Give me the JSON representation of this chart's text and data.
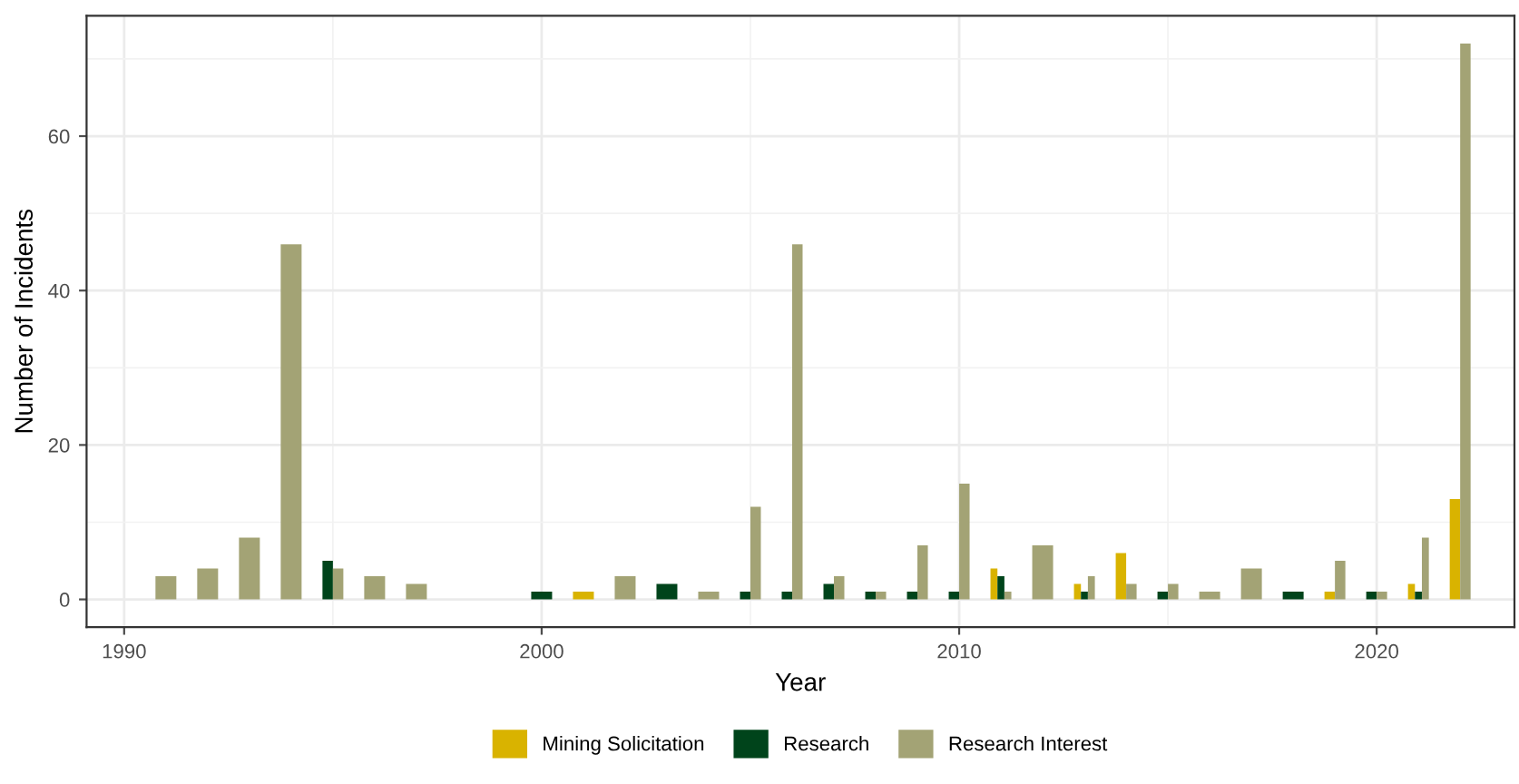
{
  "chart_data": {
    "type": "bar",
    "xlabel": "Year",
    "ylabel": "Number of Incidents",
    "x": [
      1991,
      1992,
      1993,
      1994,
      1995,
      1996,
      1997,
      2000,
      2001,
      2002,
      2003,
      2004,
      2005,
      2006,
      2007,
      2008,
      2009,
      2010,
      2011,
      2012,
      2013,
      2014,
      2015,
      2016,
      2017,
      2018,
      2019,
      2020,
      2021,
      2022
    ],
    "series": [
      {
        "name": "Mining Solicitation",
        "color": "#d9b300",
        "values": [
          null,
          null,
          null,
          null,
          null,
          null,
          null,
          null,
          1,
          null,
          null,
          null,
          null,
          null,
          null,
          null,
          null,
          null,
          4,
          null,
          2,
          6,
          null,
          null,
          null,
          null,
          1,
          null,
          2,
          13
        ]
      },
      {
        "name": "Research",
        "color": "#00441b",
        "values": [
          null,
          null,
          null,
          null,
          5,
          null,
          null,
          1,
          null,
          null,
          2,
          null,
          1,
          1,
          2,
          1,
          1,
          1,
          3,
          null,
          1,
          null,
          1,
          null,
          null,
          1,
          null,
          1,
          1,
          null
        ]
      },
      {
        "name": "Research Interest",
        "color": "#a3a375",
        "values": [
          3,
          4,
          8,
          46,
          4,
          3,
          2,
          null,
          null,
          3,
          null,
          1,
          12,
          46,
          3,
          1,
          7,
          15,
          1,
          7,
          3,
          2,
          2,
          1,
          4,
          null,
          5,
          1,
          8,
          72
        ]
      }
    ],
    "xlim": [
      1989.1,
      2023.3
    ],
    "ylim": [
      -3.6,
      75.6
    ],
    "xticks": [
      1990,
      2000,
      2010,
      2020
    ],
    "yticks": [
      0,
      20,
      40,
      60
    ],
    "grid": true,
    "legend": "bottom"
  }
}
